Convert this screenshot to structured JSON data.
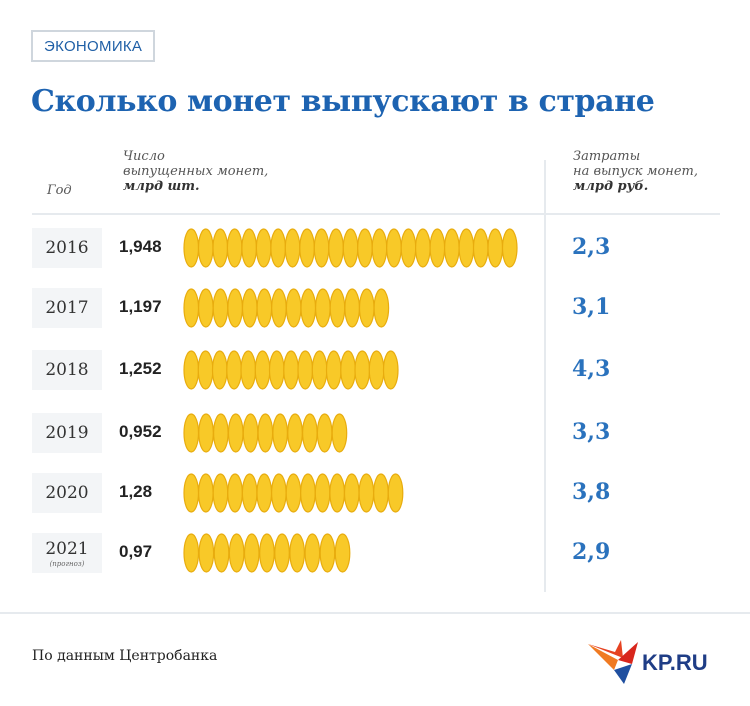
{
  "tag": "ЭКОНОМИКА",
  "colors": {
    "title": "#1d63b1",
    "coin": "#f8c928",
    "coin_edge": "#e8ac0e",
    "cost": "#2a72bd"
  },
  "icons": {
    "coins": "coin-stack-icon",
    "logo": "kp-bird-icon"
  },
  "chart_data": {
    "type": "table",
    "title": "Сколько монет выпускают в стране",
    "columns": {
      "year": "Год",
      "count_line1": "Число",
      "count_line2": "выпущенных монет,",
      "count_unit": "млрд шт.",
      "cost_line1": "Затраты",
      "cost_line2": "на выпуск монет,",
      "cost_unit": "млрд руб."
    },
    "rows": [
      {
        "year": "2016",
        "note": "",
        "count": "1,948",
        "count_value": 1.948,
        "cost": "2,3"
      },
      {
        "year": "2017",
        "note": "",
        "count": "1,197",
        "count_value": 1.197,
        "cost": "3,1"
      },
      {
        "year": "2018",
        "note": "",
        "count": "1,252",
        "count_value": 1.252,
        "cost": "4,3"
      },
      {
        "year": "2019",
        "note": "",
        "count": "0,952",
        "count_value": 0.952,
        "cost": "3,3"
      },
      {
        "year": "2020",
        "note": "",
        "count": "1,28",
        "count_value": 1.28,
        "cost": "3,8"
      },
      {
        "year": "2021",
        "note": "(прогноз)",
        "count": "0,97",
        "count_value": 0.97,
        "cost": "2,9"
      }
    ]
  },
  "source": "По данным Центробанка",
  "logo_text": "KP.RU"
}
